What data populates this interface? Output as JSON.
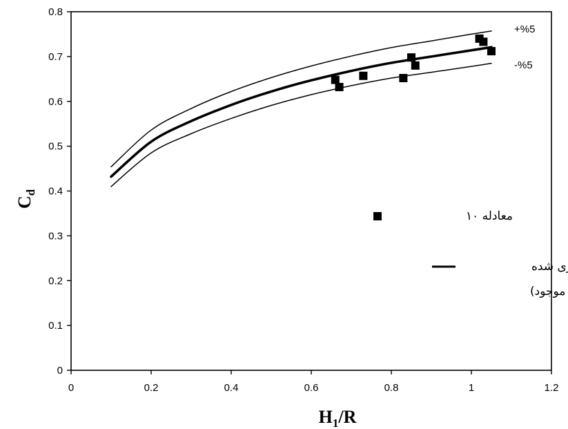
{
  "chart_data": {
    "type": "scatter",
    "xlabel": "H1/R",
    "xlabel_main": "H",
    "xlabel_sub": "1",
    "xlabel_rest": "/R",
    "ylabel": "Cd",
    "ylabel_main": "C",
    "ylabel_sub": "d",
    "xlim": [
      0,
      1.2
    ],
    "ylim": [
      0,
      0.8
    ],
    "x_ticks": [
      "0",
      "0.2",
      "0.4",
      "0.6",
      "0.8",
      "1",
      "1.2"
    ],
    "y_ticks": [
      "0",
      "0.1",
      "0.2",
      "0.3",
      "0.4",
      "0.5",
      "0.6",
      "0.7",
      "0.8"
    ],
    "grid": false,
    "legend_position": "center-right, inside plot",
    "series": [
      {
        "name": "معادله ۱۰",
        "kind": "markers",
        "marker": "square",
        "points": [
          [
            0.66,
            0.648
          ],
          [
            0.67,
            0.632
          ],
          [
            0.73,
            0.657
          ],
          [
            0.83,
            0.652
          ],
          [
            0.85,
            0.698
          ],
          [
            0.86,
            0.68
          ],
          [
            1.02,
            0.74
          ],
          [
            1.03,
            0.733
          ],
          [
            1.05,
            0.712
          ]
        ]
      },
      {
        "name": "اندازه گیری شده (مطالعه موجود)",
        "kind": "line",
        "style": "thick",
        "x": [
          0.1,
          0.2,
          0.3,
          0.4,
          0.5,
          0.6,
          0.7,
          0.8,
          0.9,
          1.0,
          1.05
        ],
        "y": [
          0.432,
          0.51,
          0.556,
          0.592,
          0.622,
          0.647,
          0.668,
          0.686,
          0.7,
          0.714,
          0.721
        ]
      },
      {
        "label": "+%5",
        "kind": "line",
        "style": "thin",
        "x": [
          0.1,
          0.2,
          0.3,
          0.4,
          0.5,
          0.6,
          0.7,
          0.8,
          0.9,
          1.0,
          1.05
        ],
        "y": [
          0.454,
          0.536,
          0.584,
          0.622,
          0.653,
          0.679,
          0.701,
          0.72,
          0.735,
          0.75,
          0.757
        ]
      },
      {
        "label": "-%5",
        "kind": "line",
        "style": "thin",
        "x": [
          0.1,
          0.2,
          0.3,
          0.4,
          0.5,
          0.6,
          0.7,
          0.8,
          0.9,
          1.0,
          1.05
        ],
        "y": [
          0.41,
          0.485,
          0.528,
          0.562,
          0.591,
          0.615,
          0.635,
          0.652,
          0.665,
          0.678,
          0.685
        ]
      }
    ],
    "legend": {
      "marker_label": "معادله ۱۰",
      "line_label_1": "اندازه گیری شده",
      "line_label_2": "(مطالعه موجود)"
    },
    "annotations": [
      "+%5",
      "-%5"
    ]
  }
}
